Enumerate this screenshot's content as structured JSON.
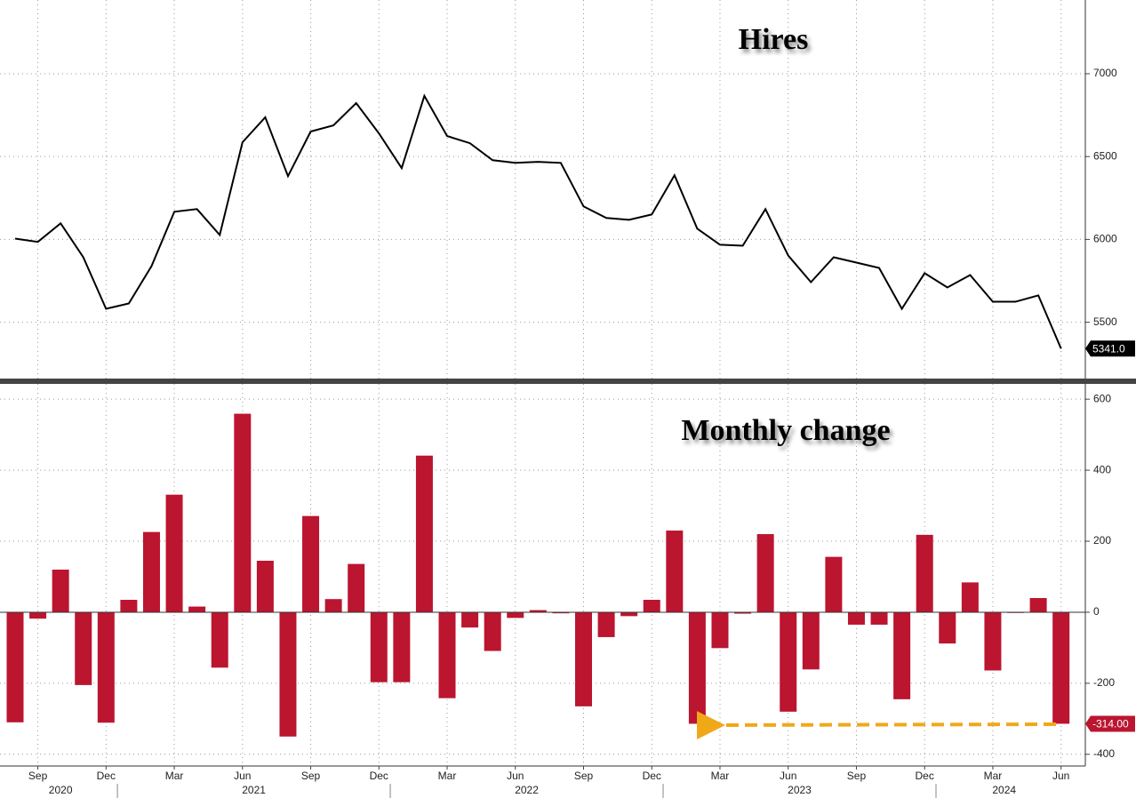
{
  "chart_data": [
    {
      "type": "line",
      "title": "Hires",
      "categories": [
        "2020-08",
        "2020-09",
        "2020-10",
        "2020-11",
        "2020-12",
        "2021-01",
        "2021-02",
        "2021-03",
        "2021-04",
        "2021-05",
        "2021-06",
        "2021-07",
        "2021-08",
        "2021-09",
        "2021-10",
        "2021-11",
        "2021-12",
        "2022-01",
        "2022-02",
        "2022-03",
        "2022-04",
        "2022-05",
        "2022-06",
        "2022-07",
        "2022-08",
        "2022-09",
        "2022-10",
        "2022-11",
        "2022-12",
        "2023-01",
        "2023-02",
        "2023-03",
        "2023-04",
        "2023-05",
        "2023-06",
        "2023-07",
        "2023-08",
        "2023-09",
        "2023-10",
        "2023-11",
        "2023-12",
        "2024-01",
        "2024-02",
        "2024-03",
        "2024-04",
        "2024-05",
        "2024-06"
      ],
      "values": [
        6005,
        5985,
        6097,
        5892,
        5581,
        5613,
        5839,
        6167,
        6183,
        6027,
        6586,
        6737,
        6382,
        6651,
        6688,
        6823,
        6640,
        6430,
        6866,
        6624,
        6581,
        6478,
        6462,
        6468,
        6462,
        6199,
        6129,
        6118,
        6150,
        6387,
        6065,
        5968,
        5962,
        6183,
        5903,
        5742,
        5892,
        5860,
        5828,
        5581,
        5796,
        5710,
        5785,
        5624,
        5624,
        5662,
        5341
      ],
      "value_labels": [
        null,
        null,
        null,
        null,
        null,
        null,
        null,
        null,
        null,
        null,
        null,
        null,
        null,
        null,
        null,
        null,
        null,
        null,
        null,
        null,
        null,
        null,
        null,
        null,
        null,
        null,
        null,
        null,
        null,
        null,
        null,
        null,
        null,
        null,
        null,
        null,
        null,
        null,
        null,
        null,
        null,
        null,
        null,
        null,
        null,
        null,
        "5341.0"
      ],
      "color": "#000000",
      "label_color": "#000000",
      "ylim": [
        5160,
        7445
      ],
      "yticks": [
        5500,
        6000,
        6500,
        7000
      ],
      "grid": true
    },
    {
      "type": "bar",
      "title": "Monthly change",
      "categories": [
        "2020-08",
        "2020-09",
        "2020-10",
        "2020-11",
        "2020-12",
        "2021-01",
        "2021-02",
        "2021-03",
        "2021-04",
        "2021-05",
        "2021-06",
        "2021-07",
        "2021-08",
        "2021-09",
        "2021-10",
        "2021-11",
        "2021-12",
        "2022-01",
        "2022-02",
        "2022-03",
        "2022-04",
        "2022-05",
        "2022-06",
        "2022-07",
        "2022-08",
        "2022-09",
        "2022-10",
        "2022-11",
        "2022-12",
        "2023-01",
        "2023-02",
        "2023-03",
        "2023-04",
        "2023-05",
        "2023-06",
        "2023-07",
        "2023-08",
        "2023-09",
        "2023-10",
        "2023-11",
        "2023-12",
        "2024-01",
        "2024-02",
        "2024-03",
        "2024-04",
        "2024-05",
        "2024-06"
      ],
      "values": [
        -310,
        -18,
        120,
        -205,
        -311,
        35,
        226,
        331,
        16,
        -156,
        559,
        145,
        -350,
        271,
        37,
        136,
        -197,
        -197,
        441,
        -242,
        -43,
        -109,
        -16,
        6,
        -3,
        -265,
        -70,
        -11,
        35,
        230,
        -314,
        -101,
        -4,
        220,
        -280,
        -161,
        156,
        -35,
        -35,
        -245,
        218,
        -88,
        84,
        -164,
        0,
        40,
        -314
      ],
      "value_labels": [
        null,
        null,
        null,
        null,
        null,
        null,
        null,
        null,
        null,
        null,
        null,
        null,
        null,
        null,
        null,
        null,
        null,
        null,
        null,
        null,
        null,
        null,
        null,
        null,
        null,
        null,
        null,
        null,
        null,
        null,
        null,
        null,
        null,
        null,
        null,
        null,
        null,
        null,
        null,
        null,
        null,
        null,
        null,
        null,
        null,
        null,
        "-314.00"
      ],
      "color": "#bb1530",
      "label_color": "#bb1530",
      "ylim": [
        -433,
        643
      ],
      "yticks": [
        -400,
        -200,
        0,
        200,
        400,
        600
      ],
      "grid": true,
      "xticks": [
        {
          "value": "2020-09",
          "label": "Sep"
        },
        {
          "value": "2020-12",
          "label": "Dec"
        },
        {
          "value": "2021-03",
          "label": "Mar"
        },
        {
          "value": "2021-06",
          "label": "Jun"
        },
        {
          "value": "2021-09",
          "label": "Sep"
        },
        {
          "value": "2021-12",
          "label": "Dec"
        },
        {
          "value": "2022-03",
          "label": "Mar"
        },
        {
          "value": "2022-06",
          "label": "Jun"
        },
        {
          "value": "2022-09",
          "label": "Sep"
        },
        {
          "value": "2022-12",
          "label": "Dec"
        },
        {
          "value": "2023-03",
          "label": "Mar"
        },
        {
          "value": "2023-06",
          "label": "Jun"
        },
        {
          "value": "2023-09",
          "label": "Sep"
        },
        {
          "value": "2023-12",
          "label": "Dec"
        },
        {
          "value": "2024-03",
          "label": "Mar"
        },
        {
          "value": "2024-06",
          "label": "Jun"
        }
      ],
      "year_labels": [
        2020,
        2021,
        2022,
        2023,
        2024
      ]
    }
  ]
}
